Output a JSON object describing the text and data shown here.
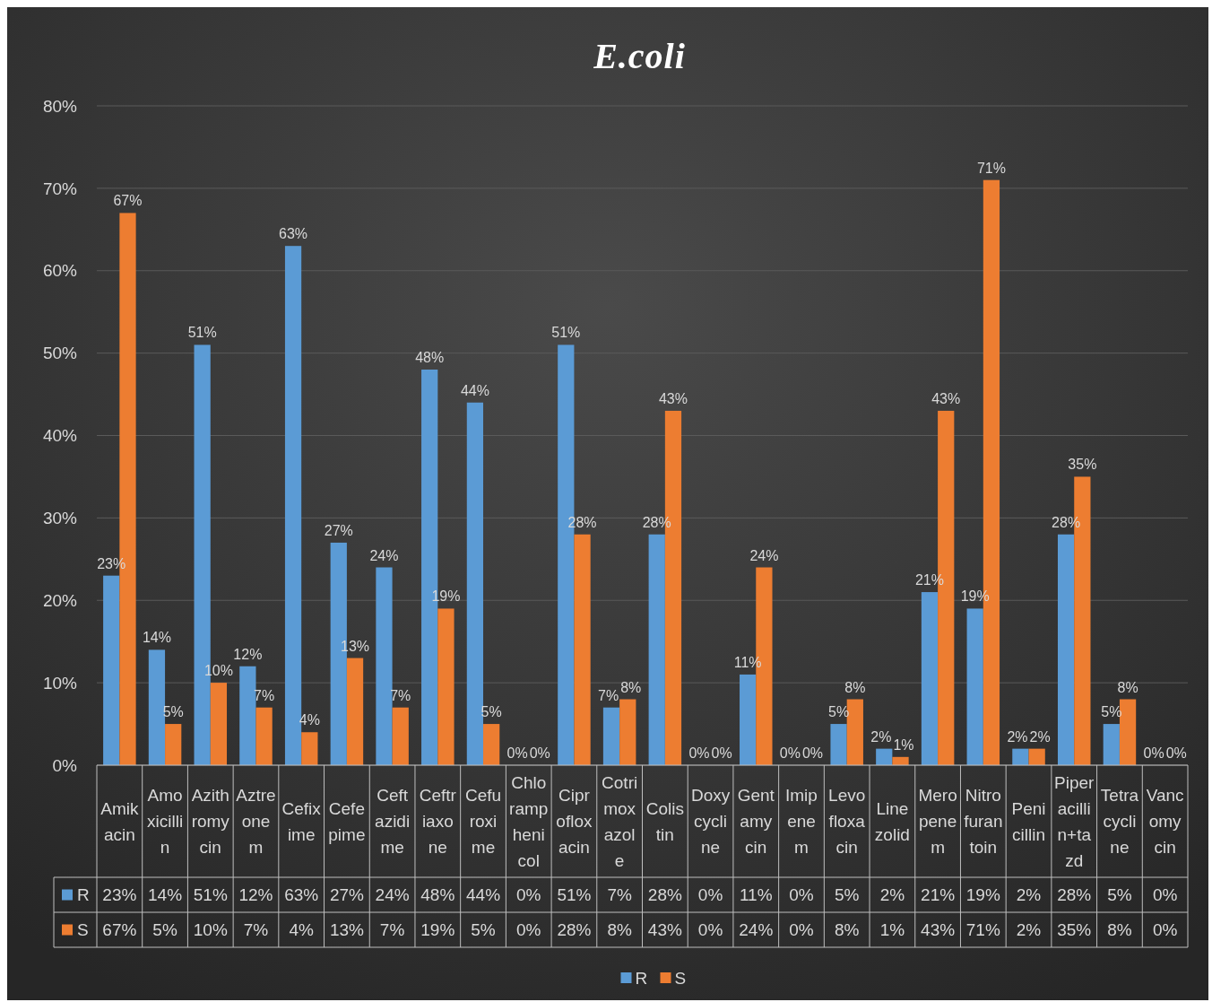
{
  "chart_data": {
    "type": "bar",
    "title": "E.coli",
    "categories": [
      "Amikacin",
      "Amoxicillin",
      "Azithromycin",
      "Aztreonem",
      "Cefixime",
      "Cefepime",
      "Ceftazidime",
      "Ceftriaxone",
      "Cefuroxime",
      "Chloramphenicol",
      "Ciprofloxacin",
      "Cotrimoxazole",
      "Colistin",
      "Doxycycline",
      "Gentamycin",
      "Imipenem",
      "Levofloxacin",
      "Linezolid",
      "Meropenem",
      "Nitrofurantoin",
      "Penicillin",
      "Piperacillin+tazd",
      "Tetracycline",
      "Vancomycin"
    ],
    "series": [
      {
        "name": "R",
        "color": "#5b9bd5",
        "values": [
          23,
          14,
          51,
          12,
          63,
          27,
          24,
          48,
          44,
          0,
          51,
          7,
          28,
          0,
          11,
          0,
          5,
          2,
          21,
          19,
          2,
          28,
          5,
          0
        ],
        "value_labels": [
          "23%",
          "14%",
          "51%",
          "12%",
          "63%",
          "27%",
          "24%",
          "48%",
          "44%",
          "0%",
          "51%",
          "7%",
          "28%",
          "0%",
          "11%",
          "0%",
          "5%",
          "2%",
          "21%",
          "19%",
          "2%",
          "28%",
          "5%",
          "0%"
        ]
      },
      {
        "name": "S",
        "color": "#ed7d31",
        "values": [
          67,
          5,
          10,
          7,
          4,
          13,
          7,
          19,
          5,
          0,
          28,
          8,
          43,
          0,
          24,
          0,
          8,
          1,
          43,
          71,
          2,
          35,
          8,
          0
        ],
        "value_labels": [
          "67%",
          "5%",
          "10%",
          "7%",
          "4%",
          "13%",
          "7%",
          "19%",
          "5%",
          "0%",
          "28%",
          "8%",
          "43%",
          "0%",
          "24%",
          "0%",
          "8%",
          "1%",
          "43%",
          "71%",
          "2%",
          "35%",
          "8%",
          "0%"
        ]
      }
    ],
    "ylim": [
      0,
      80
    ],
    "yticks": [
      {
        "value": 0,
        "label": "0%"
      },
      {
        "value": 10,
        "label": "10%"
      },
      {
        "value": 20,
        "label": "20%"
      },
      {
        "value": 30,
        "label": "30%"
      },
      {
        "value": 40,
        "label": "40%"
      },
      {
        "value": 50,
        "label": "50%"
      },
      {
        "value": 60,
        "label": "60%"
      },
      {
        "value": 70,
        "label": "70%"
      },
      {
        "value": 80,
        "label": "80%"
      }
    ],
    "grid": "y",
    "legend": "bottom"
  }
}
